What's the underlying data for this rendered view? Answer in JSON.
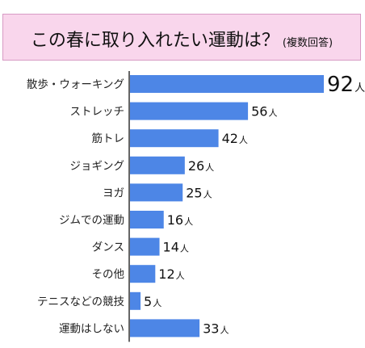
{
  "header": {
    "title": "この春に取り入れたい運動は？",
    "subtitle": "(複数回答)"
  },
  "colors": {
    "bar": "#4d86e6",
    "axis": "#333333",
    "title_bg": "#f9d6ec",
    "title_border": "#d79bc4"
  },
  "chart_data": {
    "type": "bar",
    "orientation": "horizontal",
    "title": "この春に取り入れたい運動は？(複数回答)",
    "value_unit": "人",
    "categories": [
      "散歩・ウォーキング",
      "ストレッチ",
      "筋トレ",
      "ジョギング",
      "ヨガ",
      "ジムでの運動",
      "ダンス",
      "その他",
      "テニスなどの競技",
      "運動はしない"
    ],
    "values": [
      92,
      56,
      42,
      26,
      25,
      16,
      14,
      12,
      5,
      33
    ],
    "xlim": [
      0,
      92
    ],
    "grid": false,
    "legend": "none"
  }
}
